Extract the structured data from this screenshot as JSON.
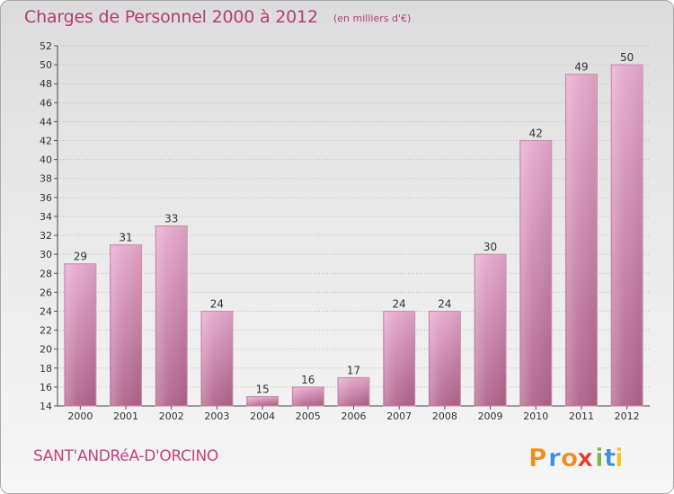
{
  "header": {
    "title": "Charges de Personnel 2000 à 2012",
    "subtitle": "(en milliers d'€)"
  },
  "commune": "SANT'ANDRéA-D'ORCINO",
  "logo": {
    "text": "Proxiti",
    "letters": [
      "P",
      "r",
      "o",
      "x",
      "i",
      "t",
      "i"
    ],
    "colors": [
      "#f28c1e",
      "#3c8fd8",
      "#f28c1e",
      "#e03c31",
      "#7ab648",
      "#3c8fd8",
      "#f2c21e"
    ]
  },
  "colors": {
    "bar_top": "#e6a9cc",
    "bar_bottom": "#b0658c",
    "title": "#b33d73",
    "grid": "#bdbdbd"
  },
  "chart_data": {
    "type": "bar",
    "title": "Charges de Personnel 2000 à 2012",
    "subtitle": "(en milliers d'€)",
    "categories": [
      "2000",
      "2001",
      "2002",
      "2003",
      "2004",
      "2005",
      "2006",
      "2007",
      "2008",
      "2009",
      "2010",
      "2011",
      "2012"
    ],
    "values": [
      29,
      31,
      33,
      24,
      15,
      16,
      17,
      24,
      24,
      30,
      42,
      49,
      50
    ],
    "ylim": [
      14,
      52
    ],
    "yticks": [
      14,
      16,
      18,
      20,
      22,
      24,
      26,
      28,
      30,
      32,
      34,
      36,
      38,
      40,
      42,
      44,
      46,
      48,
      50,
      52
    ],
    "grid": true,
    "data_labels": true
  }
}
